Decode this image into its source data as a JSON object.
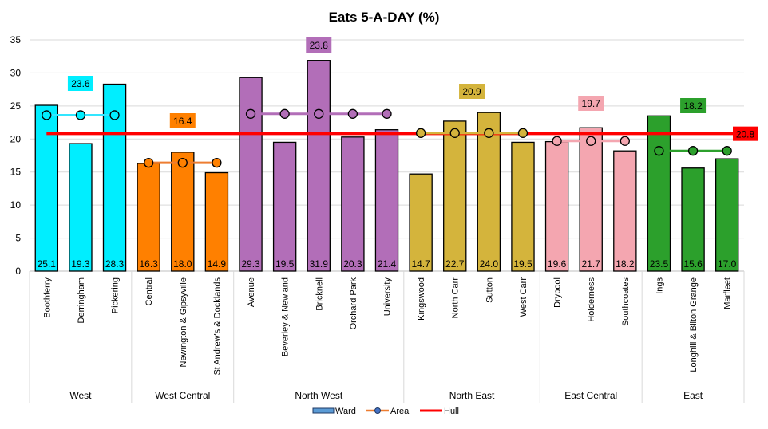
{
  "chart_data": {
    "type": "bar",
    "title": "Eats 5-A-DAY (%)",
    "ylim": [
      0,
      35
    ],
    "yticks": [
      0,
      5,
      10,
      15,
      20,
      25,
      30,
      35
    ],
    "grid": true,
    "legend_placement": "bottom",
    "legend": [
      {
        "name": "Ward",
        "kind": "bar"
      },
      {
        "name": "Area",
        "kind": "line-marker"
      },
      {
        "name": "Hull",
        "kind": "line"
      }
    ],
    "hull": {
      "name": "Hull",
      "value": 20.8,
      "label": "20.8",
      "color": "#ff0000"
    },
    "groups": [
      {
        "name": "West",
        "color": "#00eeff",
        "area": 23.6,
        "area_label": "23.6",
        "line_color": "#33e6ff",
        "wards": [
          {
            "name": "Boothferry",
            "value": 25.1,
            "label": "25.1"
          },
          {
            "name": "Derringham",
            "value": 19.3,
            "label": "19.3"
          },
          {
            "name": "Pickering",
            "value": 28.3,
            "label": "28.3"
          }
        ]
      },
      {
        "name": "West Central",
        "color": "#ff8000",
        "area": 16.4,
        "area_label": "16.4",
        "line_color": "#ed7d31",
        "wards": [
          {
            "name": "Central",
            "value": 16.3,
            "label": "16.3"
          },
          {
            "name": "Newington & Gipsyville",
            "value": 18.0,
            "label": "18.0"
          },
          {
            "name": "St Andrew's & Docklands",
            "value": 14.9,
            "label": "14.9"
          }
        ]
      },
      {
        "name": "North West",
        "color": "#b26eb8",
        "area": 23.8,
        "area_label": "23.8",
        "line_color": "#b26eb8",
        "wards": [
          {
            "name": "Avenue",
            "value": 29.3,
            "label": "29.3"
          },
          {
            "name": "Beverley & Newland",
            "value": 19.5,
            "label": "19.5"
          },
          {
            "name": "Bricknell",
            "value": 31.9,
            "label": "31.9"
          },
          {
            "name": "Orchard Park",
            "value": 20.3,
            "label": "20.3"
          },
          {
            "name": "University",
            "value": 21.4,
            "label": "21.4"
          }
        ]
      },
      {
        "name": "North East",
        "color": "#d4b43c",
        "area": 20.9,
        "area_label": "20.9",
        "line_color": "#d4b43c",
        "wards": [
          {
            "name": "Kingswood",
            "value": 14.7,
            "label": "14.7"
          },
          {
            "name": "North Carr",
            "value": 22.7,
            "label": "22.7"
          },
          {
            "name": "Sutton",
            "value": 24.0,
            "label": "24.0"
          },
          {
            "name": "West Carr",
            "value": 19.5,
            "label": "19.5"
          }
        ]
      },
      {
        "name": "East Central",
        "color": "#f4a6b0",
        "area": 19.7,
        "area_label": "19.7",
        "line_color": "#f4a6b0",
        "wards": [
          {
            "name": "Drypool",
            "value": 19.6,
            "label": "19.6"
          },
          {
            "name": "Holderness",
            "value": 21.7,
            "label": "21.7"
          },
          {
            "name": "Southcoates",
            "value": 18.2,
            "label": "18.2"
          }
        ]
      },
      {
        "name": "East",
        "color": "#2ca02c",
        "area": 18.2,
        "area_label": "18.2",
        "line_color": "#2ca02c",
        "wards": [
          {
            "name": "Ings",
            "value": 23.5,
            "label": "23.5"
          },
          {
            "name": "Longhill & Bilton Grange",
            "value": 15.6,
            "label": "15.6"
          },
          {
            "name": "Marfleet",
            "value": 17.0,
            "label": "17.0"
          }
        ]
      }
    ]
  }
}
